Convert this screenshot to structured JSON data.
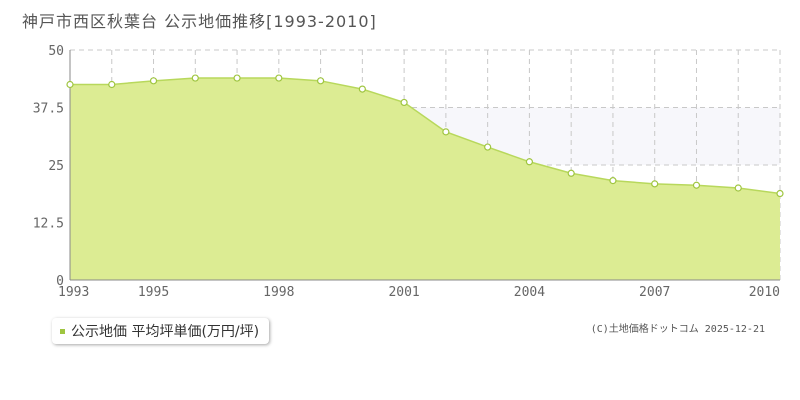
{
  "title": "神戸市西区秋葉台  公示地価推移[1993-2010]",
  "legend": {
    "label": "公示地価 平均坪単価(万円/坪)"
  },
  "credit": "(C)土地価格ドットコム 2025-12-21",
  "colors": {
    "fill": "#dcec93",
    "line": "#b8d85c",
    "marker": "#9fc540",
    "highlight_band": "#f7f7fb",
    "grid": "#c8c8c8"
  },
  "chart_data": {
    "type": "area",
    "x": [
      1993,
      1994,
      1995,
      1996,
      1997,
      1998,
      1999,
      2000,
      2001,
      2002,
      2003,
      2004,
      2005,
      2006,
      2007,
      2008,
      2009,
      2010
    ],
    "series": [
      {
        "name": "公示地価 平均坪単価(万円/坪)",
        "values": [
          42.5,
          42.5,
          43.3,
          43.9,
          43.9,
          43.9,
          43.3,
          41.5,
          38.6,
          32.2,
          28.9,
          25.7,
          23.2,
          21.6,
          20.9,
          20.6,
          20.0,
          18.8
        ]
      }
    ],
    "x_ticks": [
      "1993",
      "1995",
      "1998",
      "2001",
      "2004",
      "2007",
      "2010"
    ],
    "y_ticks": [
      "0",
      "12.5",
      "25",
      "37.5",
      "50"
    ],
    "xlim": [
      1993,
      2010
    ],
    "ylim": [
      0,
      50
    ],
    "highlight_y_range": [
      25,
      37.5
    ],
    "grid": true
  }
}
